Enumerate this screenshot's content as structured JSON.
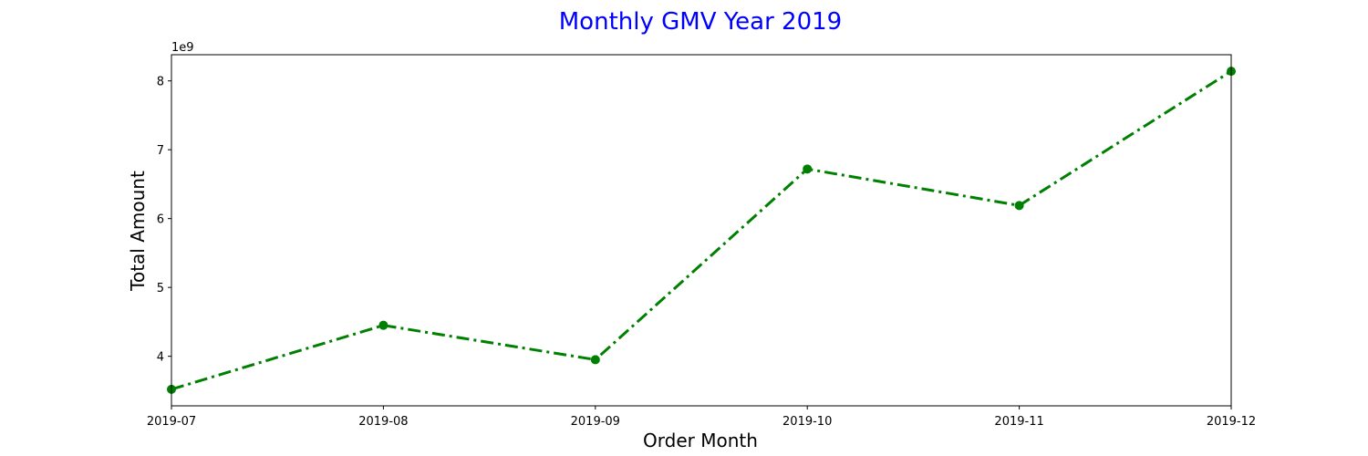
{
  "chart_data": {
    "type": "line",
    "title": "Monthly GMV Year 2019",
    "xlabel": "Order Month",
    "ylabel": "Total Amount",
    "y_offset_label": "1e9",
    "x": [
      "2019-07",
      "2019-08",
      "2019-09",
      "2019-10",
      "2019-11",
      "2019-12"
    ],
    "series": [
      {
        "values": [
          3.52,
          4.45,
          3.95,
          6.72,
          6.19,
          8.14
        ],
        "color": "#008000",
        "line_style": "dash-dot",
        "marker": "circle"
      }
    ],
    "xlim": [
      "2019-07",
      "2019-12"
    ],
    "ylim": [
      3.28,
      8.38
    ],
    "yticks": [
      "4",
      "5",
      "6",
      "7",
      "8"
    ],
    "grid": false,
    "legend": "none"
  },
  "colors": {
    "title": "#0000ff",
    "axes": "#000000"
  }
}
